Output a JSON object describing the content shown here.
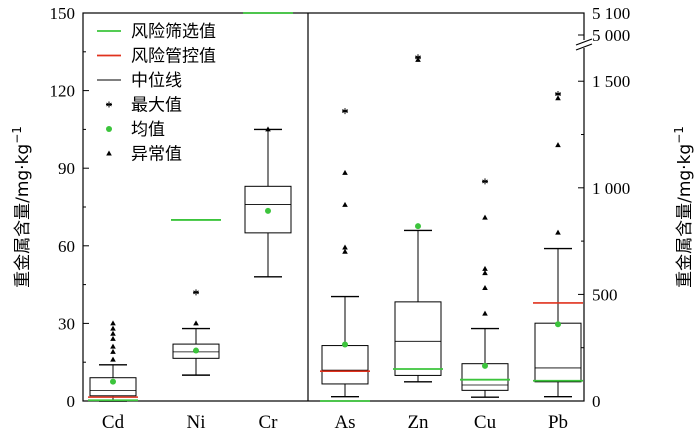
{
  "chart_data": {
    "type": "box",
    "colors": {
      "screen_line": "#3cc43c",
      "control_line": "#e0321e",
      "median_line": "#000000",
      "mean_dot": "#3cc43c",
      "max_marker": "#000000",
      "outlier_marker": "#000000"
    },
    "legend": [
      {
        "key": "screen",
        "label": "风险筛选值",
        "symbol": "line",
        "color": "#3cc43c"
      },
      {
        "key": "control",
        "label": "风险管控值",
        "symbol": "line",
        "color": "#e0321e"
      },
      {
        "key": "median",
        "label": "中位线",
        "symbol": "line",
        "color": "#000000"
      },
      {
        "key": "max",
        "label": "最大值",
        "symbol": "asterisk",
        "color": "#000000"
      },
      {
        "key": "mean",
        "label": "均值",
        "symbol": "dot",
        "color": "#3cc43c"
      },
      {
        "key": "outlier",
        "label": "异常值",
        "symbol": "triangle",
        "color": "#000000"
      }
    ],
    "left_axis": {
      "label": "重金属含量/mg·kg",
      "label_sup": "−1",
      "ylim": [
        0,
        150
      ],
      "ticks": [
        "0",
        "30",
        "60",
        "90",
        "120",
        "150"
      ],
      "tick_values": [
        0,
        30,
        60,
        90,
        120,
        150
      ]
    },
    "right_axis": {
      "label": "重金属含量/mg·kg",
      "label_sup": "−1",
      "ylim": [
        0,
        2000
      ],
      "ticks": [
        "0",
        "500",
        "1 000",
        "1 500"
      ],
      "tick_values": [
        0,
        500,
        1000,
        1500
      ],
      "break_ticks": [
        "5 000",
        "5 100"
      ],
      "break_tick_values": [
        5000,
        5100
      ]
    },
    "left_panel": [
      {
        "name": "Cd",
        "q1": 2,
        "median": 4,
        "q3": 9,
        "whisker_low": 0,
        "whisker_high": 14,
        "mean": 7.5,
        "max": null,
        "outliers": [
          16,
          19,
          21,
          24,
          26,
          28,
          30
        ],
        "screen": 0.3,
        "control": 1.5
      },
      {
        "name": "Ni",
        "q1": 16.5,
        "median": 19,
        "q3": 22,
        "whisker_low": 10,
        "whisker_high": 28,
        "mean": 19.5,
        "max": 42,
        "outliers": [
          30
        ],
        "screen": 70,
        "control": null
      },
      {
        "name": "Cr",
        "q1": 65,
        "median": 76,
        "q3": 83,
        "whisker_low": 48,
        "whisker_high": 105,
        "mean": 73.5,
        "max": null,
        "outliers": [
          105
        ],
        "screen": 150,
        "control": null
      }
    ],
    "right_panel": [
      {
        "name": "As",
        "q1": 80,
        "median": 145,
        "q3": 260,
        "whisker_low": 20,
        "whisker_high": 490,
        "mean": 265,
        "max": 1360,
        "outliers": [
          700,
          720,
          920,
          1070
        ],
        "screen": 0,
        "control": 140
      },
      {
        "name": "Zn",
        "q1": 120,
        "median": 280,
        "q3": 465,
        "whisker_low": 90,
        "whisker_high": 800,
        "mean": 820,
        "max": 1960,
        "outliers": [
          1610
        ],
        "screen": 150,
        "control": null
      },
      {
        "name": "Cu",
        "q1": 50,
        "median": 75,
        "q3": 175,
        "whisker_low": 18,
        "whisker_high": 340,
        "mean": 165,
        "max": 1030,
        "outliers": [
          410,
          530,
          600,
          620,
          860
        ],
        "screen": 100,
        "control": null
      },
      {
        "name": "Pb",
        "q1": 90,
        "median": 155,
        "q3": 365,
        "whisker_low": 20,
        "whisker_high": 715,
        "mean": 360,
        "max": 1440,
        "outliers": [
          790,
          1200,
          1420
        ],
        "screen": 95,
        "control": 460
      }
    ]
  }
}
